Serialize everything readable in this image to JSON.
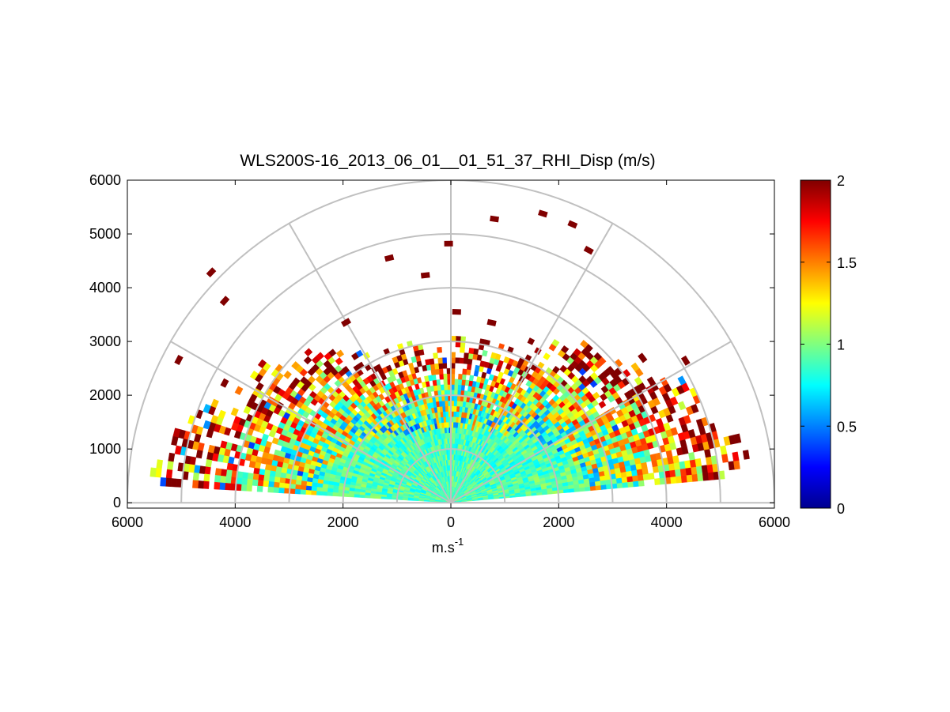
{
  "chart_data": {
    "type": "heatmap",
    "subtype": "polar-rhi-scan",
    "title": "WLS200S-16_2013_06_01__01_51_37_RHI_Disp (m/s)",
    "xlabel": "m.s",
    "xlabel_superscript": "-1",
    "ylabel": "",
    "x_range": [
      -6000,
      6000
    ],
    "y_range": [
      -100,
      6000
    ],
    "x_ticks": [
      -6000,
      -4000,
      -2000,
      0,
      2000,
      4000,
      6000
    ],
    "x_tick_labels": [
      "6000",
      "4000",
      "2000",
      "0",
      "2000",
      "4000",
      "6000"
    ],
    "y_ticks": [
      0,
      1000,
      2000,
      3000,
      4000,
      5000,
      6000
    ],
    "y_tick_labels": [
      "0",
      "1000",
      "2000",
      "3000",
      "4000",
      "5000",
      "6000"
    ],
    "polar_grid": {
      "range_rings": [
        1000,
        2000,
        3000,
        4000,
        5000,
        6000
      ],
      "spokes_deg": [
        0,
        30,
        60,
        90,
        120,
        150,
        180
      ]
    },
    "scan": {
      "elevation_min_deg": 5,
      "elevation_max_deg": 175,
      "range_min_m": 0,
      "range_max_m": 6000,
      "typical_max_range_m": 3000,
      "low_elevation_max_range_m": 5500
    },
    "colorbar": {
      "colormap": "jet",
      "min": 0,
      "max": 2,
      "ticks": [
        0,
        0.5,
        1,
        1.5,
        2
      ],
      "tick_labels": [
        "0",
        "0.5",
        "1",
        "1.5",
        "2"
      ]
    },
    "value_distribution": {
      "near_field_mean": 0.9,
      "far_field_mean": 1.6,
      "saturated_value": 2
    },
    "isolated_points": [
      {
        "x": -4450,
        "y": 4280,
        "value": 2
      },
      {
        "x": -4200,
        "y": 3750,
        "value": 2
      },
      {
        "x": -1150,
        "y": 4550,
        "value": 2
      },
      {
        "x": -480,
        "y": 4230,
        "value": 2
      },
      {
        "x": -50,
        "y": 4820,
        "value": 2
      },
      {
        "x": 800,
        "y": 5280,
        "value": 2
      },
      {
        "x": 1700,
        "y": 5380,
        "value": 2
      },
      {
        "x": 2250,
        "y": 5180,
        "value": 2
      },
      {
        "x": 2550,
        "y": 4700,
        "value": 2
      },
      {
        "x": -5050,
        "y": 2650,
        "value": 2
      },
      {
        "x": -1950,
        "y": 3350,
        "value": 2
      },
      {
        "x": 750,
        "y": 3350,
        "value": 2
      },
      {
        "x": 100,
        "y": 3550,
        "value": 2
      },
      {
        "x": 3550,
        "y": 2700,
        "value": 2
      },
      {
        "x": 4350,
        "y": 2650,
        "value": 2
      }
    ]
  }
}
